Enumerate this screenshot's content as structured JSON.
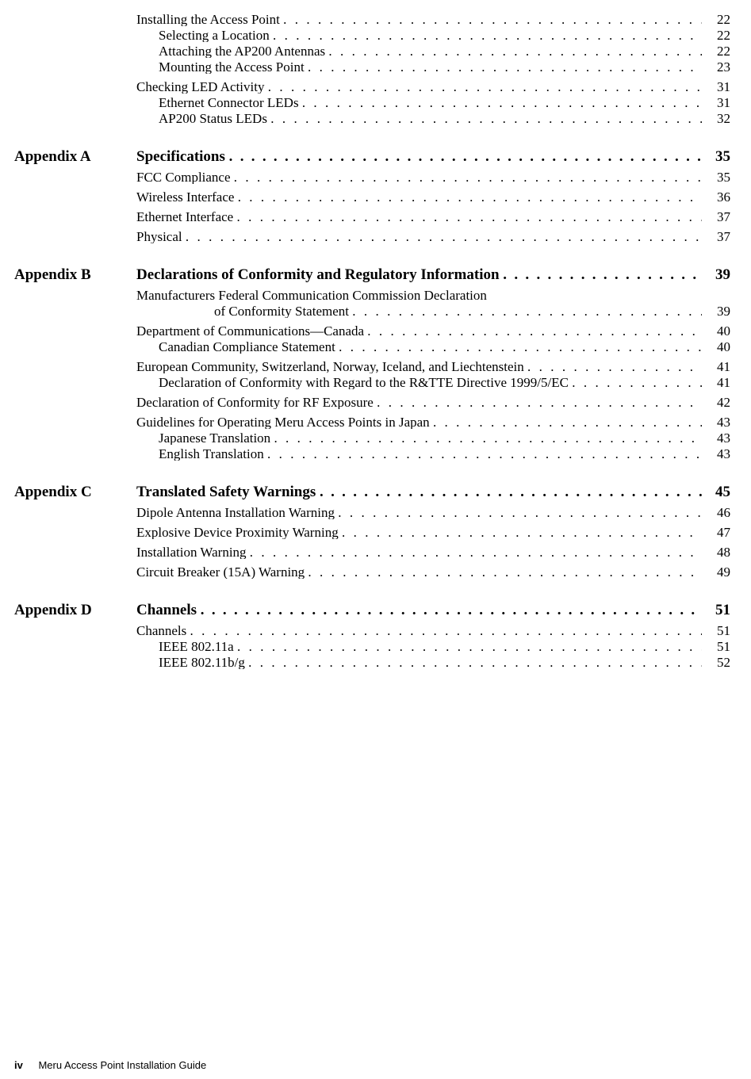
{
  "colors": {
    "text": "#000000",
    "background": "#ffffff"
  },
  "typography": {
    "body_font": "Times New Roman",
    "footer_font": "Arial",
    "chapter_fontsize_pt": 14,
    "entry_fontsize_pt": 12,
    "footer_fontsize_pt": 10
  },
  "footer": {
    "page_number": "iv",
    "book_title": "Meru Access Point Installation Guide"
  },
  "sections": [
    {
      "chapter": "",
      "entries": [
        {
          "level": 0,
          "title": "Installing the Access Point",
          "page": "22"
        },
        {
          "level": 1,
          "title": "Selecting a Location",
          "page": "22"
        },
        {
          "level": 1,
          "title": "Attaching the AP200 Antennas",
          "page": "22"
        },
        {
          "level": 1,
          "title": "Mounting the Access Point",
          "page": "23"
        },
        {
          "level": 0,
          "title": "Checking LED Activity",
          "page": "31"
        },
        {
          "level": 1,
          "title": "Ethernet Connector LEDs",
          "page": "31"
        },
        {
          "level": 1,
          "title": "AP200 Status LEDs",
          "page": "32"
        }
      ]
    },
    {
      "chapter": "Appendix A",
      "chapter_title": "Specifications",
      "chapter_page": "35",
      "entries": [
        {
          "level": 0,
          "title": "FCC Compliance",
          "page": "35"
        },
        {
          "level": 0,
          "title": "Wireless Interface",
          "page": "36"
        },
        {
          "level": 0,
          "title": "Ethernet Interface",
          "page": "37"
        },
        {
          "level": 0,
          "title": "Physical",
          "page": "37"
        }
      ]
    },
    {
      "chapter": "Appendix B",
      "chapter_title": "Declarations of Conformity and Regulatory Information",
      "chapter_page": "39",
      "entries": [
        {
          "level": 0,
          "title": "Manufacturers Federal Communication Commission Declaration",
          "continuation": "of Conformity Statement",
          "page": "39"
        },
        {
          "level": 0,
          "title": "Department of Communications—Canada",
          "page": "40"
        },
        {
          "level": 1,
          "title": "Canadian Compliance Statement",
          "page": "40"
        },
        {
          "level": 0,
          "title": "European Community, Switzerland, Norway, Iceland, and Liechtenstein",
          "page": "41"
        },
        {
          "level": 1,
          "title": "Declaration of Conformity with Regard to the R&TTE Directive 1999/5/EC",
          "page": "41"
        },
        {
          "level": 0,
          "title": "Declaration of Conformity for RF Exposure",
          "page": "42"
        },
        {
          "level": 0,
          "title": "Guidelines for Operating Meru Access Points in Japan",
          "page": "43"
        },
        {
          "level": 1,
          "title": "Japanese Translation",
          "page": "43"
        },
        {
          "level": 1,
          "title": "English Translation",
          "page": "43"
        }
      ]
    },
    {
      "chapter": "Appendix C",
      "chapter_title": "Translated Safety Warnings",
      "chapter_page": "45",
      "entries": [
        {
          "level": 0,
          "title": "Dipole Antenna Installation Warning",
          "page": "46"
        },
        {
          "level": 0,
          "title": "Explosive Device Proximity Warning",
          "page": "47"
        },
        {
          "level": 0,
          "title": "Installation Warning",
          "page": "48"
        },
        {
          "level": 0,
          "title": "Circuit Breaker (15A) Warning",
          "page": "49"
        }
      ]
    },
    {
      "chapter": "Appendix D",
      "chapter_title": "Channels",
      "chapter_page": "51",
      "entries": [
        {
          "level": 0,
          "title": "Channels",
          "page": "51"
        },
        {
          "level": 1,
          "title": "IEEE 802.11a",
          "page": "51"
        },
        {
          "level": 1,
          "title": "IEEE 802.11b/g",
          "page": "52"
        }
      ]
    }
  ]
}
